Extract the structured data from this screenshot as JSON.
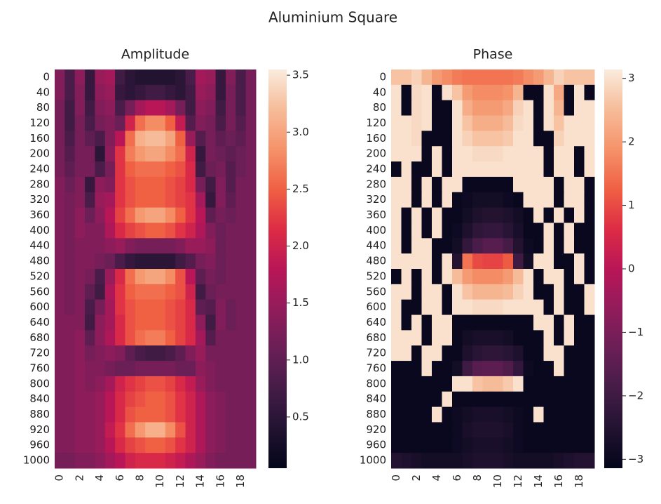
{
  "title": "Aluminium Square",
  "chart_data": [
    {
      "type": "heatmap",
      "title": "Amplitude",
      "colormap": "rocket",
      "categories": [
        "0",
        null,
        "2",
        null,
        "4",
        null,
        "6",
        null,
        "8",
        null,
        "10",
        null,
        "12",
        null,
        "14",
        null,
        "16",
        null,
        "18",
        null
      ],
      "y_categories": [
        "0",
        "40",
        "80",
        "120",
        "160",
        "200",
        "240",
        "280",
        "320",
        "360",
        "400",
        "440",
        "480",
        "520",
        "560",
        "600",
        "640",
        "680",
        "720",
        "760",
        "800",
        "840",
        "880",
        "920",
        "960",
        "1000"
      ],
      "zlim": [
        0.05,
        3.55
      ],
      "zticks": [
        0.5,
        {
          "value": 1,
          "label": "1.0"
        },
        1.5,
        {
          "value": 2,
          "label": "2.0"
        },
        2.5,
        {
          "value": 3,
          "label": "3.0"
        },
        3.5
      ],
      "values": [
        [
          1.3,
          0.8,
          1.4,
          0.6,
          1.5,
          1.6,
          0.7,
          0.5,
          0.4,
          0.4,
          0.4,
          0.4,
          0.5,
          0.8,
          1.6,
          1.5,
          0.6,
          1.3,
          0.8,
          1.2
        ],
        [
          1.3,
          0.8,
          1.3,
          0.6,
          1.4,
          1.5,
          0.6,
          0.5,
          0.6,
          0.7,
          0.7,
          0.6,
          0.5,
          0.7,
          1.5,
          1.4,
          0.6,
          1.2,
          0.8,
          1.2
        ],
        [
          1.2,
          0.7,
          1.3,
          0.7,
          1.3,
          1.4,
          0.8,
          1.2,
          1.6,
          1.8,
          1.8,
          1.6,
          1.2,
          0.7,
          1.4,
          1.3,
          0.7,
          1.2,
          0.8,
          1.2
        ],
        [
          1.2,
          0.7,
          1.2,
          0.8,
          1.2,
          1.3,
          1.1,
          2.0,
          2.6,
          2.8,
          2.8,
          2.5,
          1.9,
          0.9,
          1.3,
          1.2,
          0.8,
          1.2,
          0.9,
          1.2
        ],
        [
          1.2,
          0.8,
          1.2,
          1.0,
          0.8,
          1.3,
          1.8,
          2.6,
          3.1,
          3.2,
          3.2,
          3.0,
          2.5,
          1.5,
          0.9,
          1.2,
          1.0,
          1.1,
          1.0,
          1.2
        ],
        [
          1.2,
          0.9,
          1.2,
          1.2,
          0.5,
          1.4,
          2.2,
          2.7,
          2.9,
          3.0,
          3.0,
          2.8,
          2.6,
          2.0,
          0.6,
          1.2,
          1.1,
          1.0,
          1.1,
          1.2
        ],
        [
          1.2,
          1.0,
          1.2,
          1.2,
          0.8,
          1.2,
          2.2,
          2.5,
          2.6,
          2.6,
          2.6,
          2.5,
          2.4,
          2.1,
          0.7,
          1.1,
          1.2,
          0.9,
          1.1,
          1.2
        ],
        [
          1.3,
          1.1,
          1.3,
          0.6,
          1.4,
          1.3,
          2.2,
          2.4,
          2.5,
          2.5,
          2.5,
          2.4,
          2.3,
          2.1,
          1.2,
          0.7,
          1.3,
          0.9,
          1.2,
          1.2
        ],
        [
          1.3,
          1.2,
          1.3,
          0.8,
          1.5,
          1.6,
          2.2,
          2.4,
          2.5,
          2.5,
          2.5,
          2.4,
          2.3,
          2.2,
          1.6,
          0.6,
          1.3,
          1.0,
          1.2,
          1.2
        ],
        [
          1.3,
          1.2,
          1.4,
          1.1,
          1.4,
          1.8,
          2.3,
          2.6,
          2.9,
          3.0,
          3.0,
          2.8,
          2.5,
          2.2,
          1.8,
          1.0,
          1.2,
          1.1,
          1.2,
          1.2
        ],
        [
          1.3,
          1.2,
          1.4,
          1.3,
          1.3,
          1.7,
          2.1,
          2.3,
          2.4,
          2.5,
          2.5,
          2.4,
          2.2,
          2.0,
          1.7,
          1.3,
          1.1,
          1.2,
          1.2,
          1.2
        ],
        [
          1.3,
          1.2,
          1.3,
          1.3,
          1.3,
          1.4,
          1.5,
          1.3,
          1.2,
          1.2,
          1.2,
          1.2,
          1.3,
          1.5,
          1.5,
          1.4,
          1.1,
          1.2,
          1.2,
          1.2
        ],
        [
          1.3,
          1.2,
          1.3,
          1.3,
          1.2,
          1.1,
          0.8,
          0.6,
          0.5,
          0.5,
          0.5,
          0.5,
          0.7,
          0.9,
          1.2,
          1.3,
          1.1,
          1.2,
          1.2,
          1.2
        ],
        [
          1.3,
          1.2,
          1.3,
          1.2,
          0.8,
          1.5,
          2.1,
          2.6,
          2.9,
          3.0,
          3.0,
          2.8,
          2.4,
          1.8,
          1.0,
          1.2,
          1.1,
          1.2,
          1.2,
          1.2
        ],
        [
          1.3,
          1.2,
          1.3,
          1.0,
          0.7,
          1.7,
          2.2,
          2.5,
          2.6,
          2.6,
          2.6,
          2.5,
          2.4,
          2.0,
          0.7,
          1.1,
          1.2,
          1.2,
          1.2,
          1.2
        ],
        [
          1.3,
          1.2,
          1.3,
          0.8,
          1.2,
          1.6,
          2.2,
          2.4,
          2.5,
          2.5,
          2.5,
          2.4,
          2.3,
          2.1,
          1.0,
          0.9,
          1.3,
          1.1,
          1.2,
          1.2
        ],
        [
          1.3,
          1.3,
          1.3,
          0.7,
          1.4,
          1.6,
          2.1,
          2.4,
          2.5,
          2.5,
          2.5,
          2.4,
          2.3,
          2.1,
          1.4,
          0.7,
          1.3,
          1.1,
          1.2,
          1.2
        ],
        [
          1.3,
          1.3,
          1.4,
          1.0,
          1.4,
          1.7,
          2.1,
          2.4,
          2.6,
          2.7,
          2.7,
          2.5,
          2.3,
          2.1,
          1.6,
          0.9,
          1.2,
          1.2,
          1.2,
          1.2
        ],
        [
          1.3,
          1.3,
          1.4,
          1.2,
          1.3,
          1.4,
          1.3,
          1.0,
          0.8,
          0.7,
          0.7,
          0.8,
          1.0,
          1.3,
          1.5,
          1.2,
          1.2,
          1.2,
          1.2,
          1.2
        ],
        [
          1.3,
          1.3,
          1.4,
          1.3,
          1.3,
          1.2,
          1.1,
          1.1,
          1.2,
          1.2,
          1.2,
          1.2,
          1.1,
          1.1,
          1.4,
          1.3,
          1.2,
          1.2,
          1.2,
          1.2
        ],
        [
          1.3,
          1.3,
          1.4,
          1.3,
          1.4,
          1.6,
          2.0,
          2.2,
          2.3,
          2.4,
          2.4,
          2.3,
          2.1,
          1.9,
          1.5,
          1.3,
          1.2,
          1.2,
          1.2,
          1.2
        ],
        [
          1.3,
          1.3,
          1.4,
          1.4,
          1.5,
          1.8,
          2.1,
          2.3,
          2.4,
          2.5,
          2.5,
          2.4,
          2.2,
          2.0,
          1.7,
          1.4,
          1.3,
          1.2,
          1.2,
          1.2
        ],
        [
          1.3,
          1.3,
          1.4,
          1.4,
          1.5,
          1.8,
          2.1,
          2.4,
          2.5,
          2.5,
          2.5,
          2.4,
          2.2,
          2.0,
          1.7,
          1.4,
          1.3,
          1.2,
          1.2,
          1.2
        ],
        [
          1.3,
          1.3,
          1.4,
          1.4,
          1.5,
          1.9,
          2.2,
          2.6,
          2.9,
          3.1,
          3.1,
          2.8,
          2.4,
          2.0,
          1.7,
          1.4,
          1.3,
          1.2,
          1.2,
          1.2
        ],
        [
          1.3,
          1.3,
          1.4,
          1.4,
          1.5,
          1.8,
          2.1,
          2.3,
          2.4,
          2.5,
          2.5,
          2.4,
          2.2,
          2.0,
          1.7,
          1.4,
          1.3,
          1.2,
          1.2,
          1.2
        ],
        [
          1.2,
          1.2,
          1.3,
          1.3,
          1.4,
          1.6,
          1.8,
          2.0,
          2.1,
          2.1,
          2.1,
          2.0,
          1.9,
          1.7,
          1.5,
          1.3,
          1.2,
          1.2,
          1.2,
          1.2
        ]
      ]
    },
    {
      "type": "heatmap",
      "title": "Phase",
      "colormap": "rocket",
      "categories": [
        "0",
        null,
        "2",
        null,
        "4",
        null,
        "6",
        null,
        "8",
        null,
        "10",
        null,
        "12",
        null,
        "14",
        null,
        "16",
        null,
        "18",
        null
      ],
      "y_categories": [
        "0",
        "40",
        "80",
        "120",
        "160",
        "200",
        "240",
        "280",
        "320",
        "360",
        "400",
        "440",
        "480",
        "520",
        "560",
        "600",
        "640",
        "680",
        "720",
        "760",
        "800",
        "840",
        "880",
        "920",
        "960",
        "1000"
      ],
      "zlim": [
        -3.14,
        3.14
      ],
      "zticks": [
        {
          "value": -3,
          "label": "−3"
        },
        {
          "value": -2,
          "label": "−2"
        },
        {
          "value": -1,
          "label": "−1"
        },
        0,
        1,
        2,
        3
      ],
      "values": [
        [
          2.6,
          2.6,
          2.8,
          2.4,
          2.0,
          1.8,
          1.6,
          1.5,
          1.5,
          1.5,
          1.5,
          1.5,
          1.6,
          1.8,
          2.0,
          2.4,
          2.8,
          2.6,
          2.6,
          2.6
        ],
        [
          3.0,
          -3.0,
          2.9,
          3.0,
          -3.0,
          3.0,
          2.6,
          2.0,
          1.8,
          1.8,
          1.8,
          1.9,
          2.4,
          -3.0,
          -3.0,
          3.0,
          2.2,
          -3.0,
          3.0,
          -3.0
        ],
        [
          3.0,
          -3.0,
          2.9,
          3.0,
          -3.0,
          -3.0,
          3.0,
          2.3,
          2.0,
          2.0,
          2.0,
          2.2,
          2.8,
          3.0,
          -3.0,
          3.0,
          2.4,
          -3.0,
          3.0,
          3.0
        ],
        [
          3.0,
          3.0,
          2.9,
          3.0,
          -3.0,
          -3.0,
          3.0,
          2.6,
          2.3,
          2.3,
          2.3,
          2.5,
          2.9,
          3.0,
          -3.0,
          3.0,
          2.6,
          3.0,
          3.0,
          3.0
        ],
        [
          3.0,
          3.0,
          2.9,
          -3.0,
          -3.0,
          -3.0,
          3.0,
          2.8,
          2.6,
          2.6,
          2.6,
          2.7,
          3.0,
          3.0,
          -3.0,
          -3.0,
          2.8,
          3.0,
          3.0,
          3.0
        ],
        [
          3.0,
          3.0,
          3.0,
          -3.0,
          3.0,
          -3.0,
          3.0,
          3.0,
          2.9,
          2.9,
          2.9,
          3.0,
          3.0,
          3.0,
          3.0,
          -3.0,
          3.0,
          3.0,
          -3.0,
          3.0
        ],
        [
          -3.0,
          3.0,
          -3.0,
          -3.0,
          3.0,
          -3.0,
          3.0,
          3.0,
          3.0,
          3.0,
          3.0,
          3.0,
          3.0,
          3.0,
          3.0,
          -3.0,
          3.0,
          3.0,
          -3.0,
          3.0
        ],
        [
          3.0,
          3.0,
          -3.0,
          3.0,
          -3.0,
          3.0,
          3.0,
          -3.0,
          -3.0,
          -3.0,
          -3.0,
          -3.0,
          3.0,
          3.0,
          3.0,
          3.0,
          -3.0,
          3.0,
          3.0,
          -3.0
        ],
        [
          3.0,
          3.0,
          -3.0,
          3.0,
          -3.0,
          3.0,
          -3.0,
          -2.9,
          -2.8,
          -2.8,
          -2.8,
          -2.9,
          -3.0,
          3.0,
          3.0,
          3.0,
          -3.0,
          3.0,
          3.0,
          -3.0
        ],
        [
          3.0,
          -3.0,
          3.0,
          -3.0,
          3.0,
          -3.0,
          -3.0,
          -2.8,
          -2.6,
          -2.5,
          -2.5,
          -2.6,
          -2.8,
          -3.0,
          3.0,
          -3.0,
          3.0,
          -3.0,
          3.0,
          -3.0
        ],
        [
          3.0,
          -3.0,
          3.0,
          -3.0,
          3.0,
          -3.0,
          -2.9,
          -2.6,
          -2.3,
          -2.2,
          -2.2,
          -2.4,
          -2.7,
          -3.0,
          -3.0,
          3.0,
          -3.0,
          3.0,
          -3.0,
          -3.0
        ],
        [
          3.0,
          -3.0,
          3.0,
          3.0,
          -3.0,
          -3.0,
          -2.8,
          -2.2,
          -1.8,
          -1.6,
          -1.6,
          -1.9,
          -2.5,
          -2.9,
          -3.0,
          3.0,
          -3.0,
          3.0,
          -3.0,
          -3.0
        ],
        [
          3.0,
          3.0,
          3.0,
          3.0,
          -3.0,
          3.0,
          -2.5,
          1.5,
          1.0,
          0.9,
          0.9,
          1.2,
          -2.0,
          -2.8,
          3.0,
          3.0,
          -3.0,
          -3.0,
          3.0,
          -3.0
        ],
        [
          -3.0,
          3.0,
          -3.0,
          3.0,
          -3.0,
          3.0,
          2.5,
          2.0,
          1.8,
          1.8,
          1.8,
          2.0,
          2.5,
          3.0,
          -3.0,
          3.0,
          3.0,
          -3.0,
          3.0,
          -3.0
        ],
        [
          3.0,
          3.0,
          -3.0,
          3.0,
          3.0,
          -3.0,
          3.0,
          2.6,
          2.4,
          2.4,
          2.4,
          2.5,
          2.8,
          3.0,
          -3.0,
          -3.0,
          3.0,
          -3.0,
          -3.0,
          3.0
        ],
        [
          3.0,
          -3.0,
          -3.0,
          3.0,
          3.0,
          -3.0,
          3.0,
          3.0,
          2.9,
          2.9,
          2.9,
          3.0,
          3.0,
          3.0,
          3.0,
          -3.0,
          3.0,
          -3.0,
          -3.0,
          3.0
        ],
        [
          3.0,
          -3.0,
          3.0,
          -3.0,
          3.0,
          3.0,
          -3.0,
          -3.0,
          -3.0,
          -3.0,
          -3.0,
          -3.0,
          -3.0,
          -3.0,
          3.0,
          3.0,
          -3.0,
          3.0,
          -3.0,
          -3.0
        ],
        [
          3.0,
          3.0,
          3.0,
          -3.0,
          3.0,
          3.0,
          -3.0,
          -2.8,
          -2.7,
          -2.7,
          -2.7,
          -2.8,
          -3.0,
          -3.0,
          -3.0,
          3.0,
          -3.0,
          3.0,
          -3.0,
          -3.0
        ],
        [
          3.0,
          3.0,
          -3.0,
          3.0,
          3.0,
          -3.0,
          -3.0,
          -2.6,
          -2.4,
          -2.3,
          -2.3,
          -2.4,
          -2.6,
          -3.0,
          -3.0,
          3.0,
          3.0,
          -3.0,
          -3.0,
          -3.0
        ],
        [
          -3.0,
          -3.0,
          -3.0,
          3.0,
          -3.0,
          -3.0,
          -2.8,
          -2.0,
          -1.6,
          -1.5,
          -1.5,
          -1.7,
          -2.2,
          -2.9,
          -3.0,
          -3.0,
          3.0,
          -3.0,
          -3.0,
          -3.0
        ],
        [
          -3.0,
          -3.0,
          -3.0,
          -3.0,
          -3.0,
          -3.0,
          3.0,
          3.0,
          2.6,
          2.5,
          2.5,
          2.7,
          3.0,
          -3.0,
          -3.0,
          -3.0,
          -3.0,
          -3.0,
          -3.0,
          -3.0
        ],
        [
          -3.0,
          -3.0,
          -3.0,
          -3.0,
          -3.0,
          3.0,
          -3.0,
          -3.0,
          -3.0,
          -3.0,
          -3.0,
          -3.0,
          -3.0,
          -3.0,
          -3.0,
          -3.0,
          -3.0,
          -3.0,
          -3.0,
          -3.0
        ],
        [
          -3.0,
          -3.0,
          -3.0,
          -3.0,
          3.0,
          -3.0,
          -2.9,
          -2.8,
          -2.7,
          -2.7,
          -2.7,
          -2.8,
          -2.9,
          -3.0,
          3.0,
          -3.0,
          -3.0,
          -3.0,
          -3.0,
          -3.0
        ],
        [
          -3.0,
          -3.0,
          -3.0,
          -3.0,
          -3.0,
          -3.0,
          -2.9,
          -2.7,
          -2.6,
          -2.6,
          -2.6,
          -2.7,
          -2.9,
          -3.0,
          -3.0,
          -3.0,
          -3.0,
          -3.0,
          -3.0,
          -3.0
        ],
        [
          -3.0,
          -3.0,
          -3.0,
          -3.0,
          -3.0,
          -3.0,
          -2.9,
          -2.8,
          -2.7,
          -2.7,
          -2.7,
          -2.8,
          -2.9,
          -3.0,
          -3.0,
          -3.0,
          -3.0,
          -3.0,
          -3.0,
          -3.0
        ],
        [
          -2.5,
          -2.6,
          -2.7,
          -2.8,
          -2.8,
          -2.8,
          -2.8,
          -2.7,
          -2.6,
          -2.6,
          -2.6,
          -2.7,
          -2.8,
          -2.8,
          -2.8,
          -2.8,
          -2.7,
          -2.6,
          -2.5,
          -2.5
        ]
      ]
    }
  ]
}
